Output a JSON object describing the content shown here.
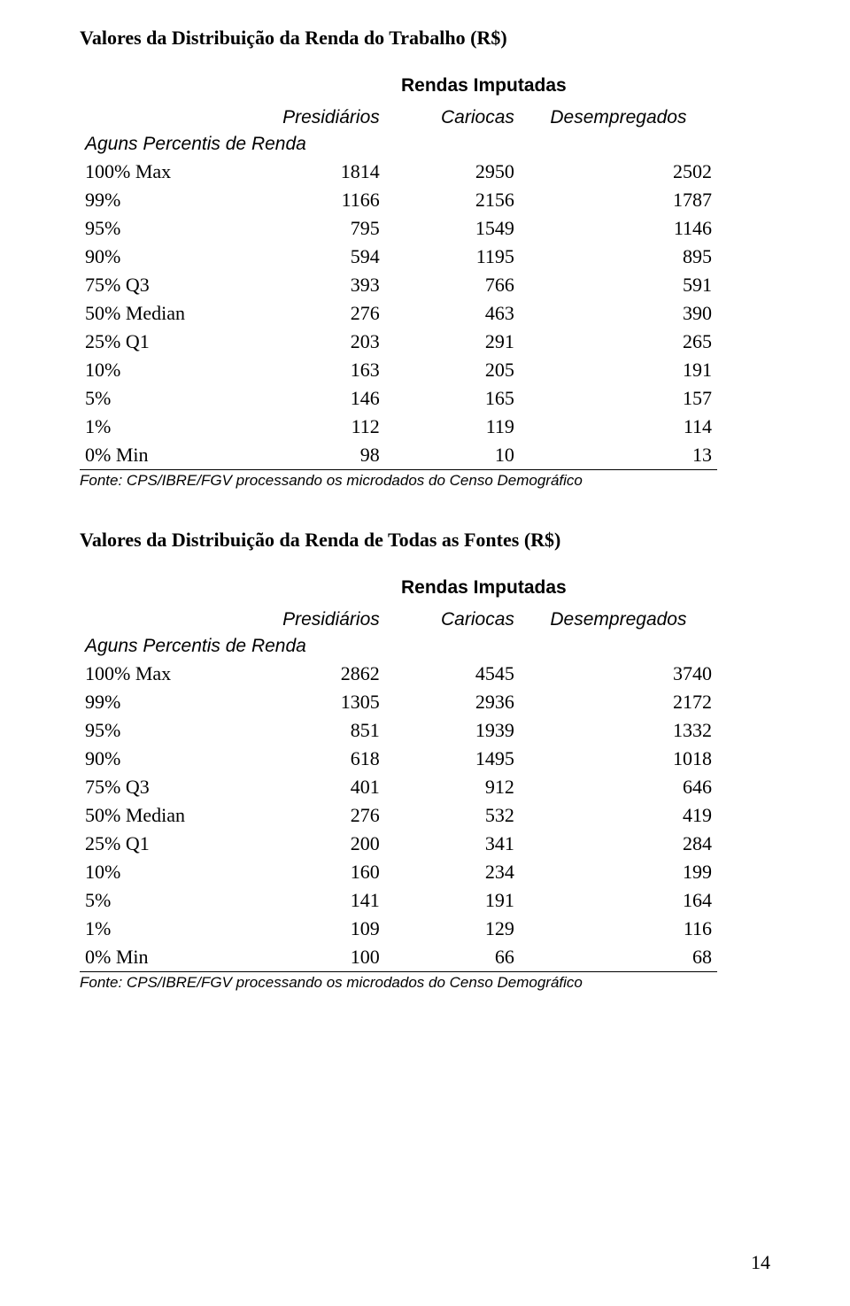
{
  "page_number": "14",
  "footnote": "Fonte: CPS/IBRE/FGV processando os microdados do Censo Demográfico",
  "colhead": {
    "subtitle": "Rendas Imputadas",
    "c1": "Presidiários",
    "c2": "Cariocas",
    "c3": "Desempregados"
  },
  "row_section_label": "Aguns Percentis de Renda",
  "percentile_labels": [
    "100% Max",
    "99%",
    "95%",
    "90%",
    "75% Q3",
    "50% Median",
    "25% Q1",
    "10%",
    "5%",
    "1%",
    "0% Min"
  ],
  "tables": [
    {
      "title": "Valores da Distribuição da Renda do Trabalho (R$)",
      "rows": [
        [
          "1814",
          "2950",
          "2502"
        ],
        [
          "1166",
          "2156",
          "1787"
        ],
        [
          "795",
          "1549",
          "1146"
        ],
        [
          "594",
          "1195",
          "895"
        ],
        [
          "393",
          "766",
          "591"
        ],
        [
          "276",
          "463",
          "390"
        ],
        [
          "203",
          "291",
          "265"
        ],
        [
          "163",
          "205",
          "191"
        ],
        [
          "146",
          "165",
          "157"
        ],
        [
          "112",
          "119",
          "114"
        ],
        [
          "98",
          "10",
          "13"
        ]
      ]
    },
    {
      "title": "Valores da Distribuição da Renda de Todas as Fontes (R$)",
      "rows": [
        [
          "2862",
          "4545",
          "3740"
        ],
        [
          "1305",
          "2936",
          "2172"
        ],
        [
          "851",
          "1939",
          "1332"
        ],
        [
          "618",
          "1495",
          "1018"
        ],
        [
          "401",
          "912",
          "646"
        ],
        [
          "276",
          "532",
          "419"
        ],
        [
          "200",
          "341",
          "284"
        ],
        [
          "160",
          "234",
          "199"
        ],
        [
          "141",
          "191",
          "164"
        ],
        [
          "109",
          "129",
          "116"
        ],
        [
          "100",
          "66",
          "68"
        ]
      ]
    }
  ]
}
